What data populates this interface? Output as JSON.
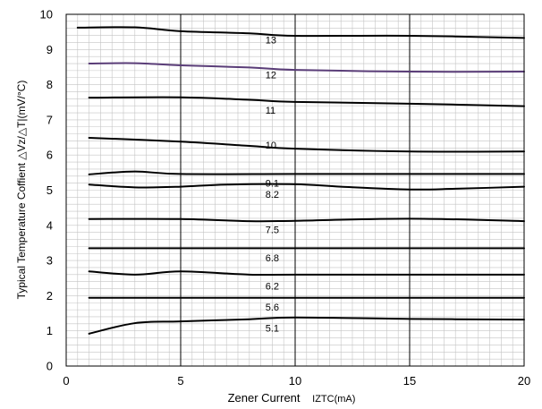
{
  "chart_data": {
    "type": "line",
    "title": "",
    "xlabel": "Zener Current",
    "xlabel_sub": "IZTC(mA)",
    "ylabel": "Typical Temperature Coffient  △Vz/△T|(mV/°C)",
    "xlim": [
      0,
      20
    ],
    "ylim": [
      0,
      10
    ],
    "x_ticks": [
      0,
      5,
      10,
      15,
      20
    ],
    "y_ticks": [
      0,
      1,
      2,
      3,
      4,
      5,
      6,
      7,
      8,
      9,
      10
    ],
    "x_minor_step": 0.5,
    "y_minor_step": 0.2,
    "grid": true,
    "legend": "none",
    "series": [
      {
        "name": "13",
        "label_x": 8.7,
        "label_y": 9.28,
        "color": "#000000",
        "points": [
          [
            0.5,
            9.62
          ],
          [
            3,
            9.63
          ],
          [
            5,
            9.52
          ],
          [
            8,
            9.46
          ],
          [
            10,
            9.39
          ],
          [
            15,
            9.39
          ],
          [
            20,
            9.33
          ]
        ]
      },
      {
        "name": "12",
        "label_x": 8.7,
        "label_y": 8.28,
        "color": "#5a3d78",
        "points": [
          [
            1,
            8.6
          ],
          [
            3,
            8.61
          ],
          [
            5,
            8.55
          ],
          [
            8,
            8.49
          ],
          [
            10,
            8.42
          ],
          [
            15,
            8.37
          ],
          [
            20,
            8.37
          ]
        ]
      },
      {
        "name": "11",
        "label_x": 8.7,
        "label_y": 7.28,
        "color": "#000000",
        "points": [
          [
            1,
            7.63
          ],
          [
            5,
            7.64
          ],
          [
            8,
            7.57
          ],
          [
            10,
            7.51
          ],
          [
            15,
            7.46
          ],
          [
            20,
            7.39
          ]
        ]
      },
      {
        "name": "10",
        "label_x": 8.7,
        "label_y": 6.28,
        "color": "#000000",
        "points": [
          [
            1,
            6.49
          ],
          [
            5,
            6.38
          ],
          [
            8,
            6.26
          ],
          [
            10,
            6.18
          ],
          [
            15,
            6.1
          ],
          [
            20,
            6.1
          ]
        ]
      },
      {
        "name": "9.1",
        "label_x": 8.7,
        "label_y": 5.2,
        "color": "#000000",
        "points": [
          [
            1,
            5.45
          ],
          [
            3,
            5.53
          ],
          [
            5,
            5.46
          ],
          [
            10,
            5.46
          ],
          [
            15,
            5.46
          ],
          [
            20,
            5.46
          ]
        ]
      },
      {
        "name": "8.2",
        "label_x": 8.7,
        "label_y": 4.88,
        "color": "#000000",
        "points": [
          [
            1,
            5.16
          ],
          [
            3,
            5.08
          ],
          [
            5,
            5.1
          ],
          [
            7,
            5.16
          ],
          [
            10,
            5.17
          ],
          [
            12,
            5.1
          ],
          [
            15,
            5.02
          ],
          [
            17,
            5.04
          ],
          [
            20,
            5.1
          ]
        ]
      },
      {
        "name": "7.5",
        "label_x": 8.7,
        "label_y": 3.88,
        "color": "#000000",
        "points": [
          [
            1,
            4.18
          ],
          [
            5,
            4.18
          ],
          [
            8,
            4.12
          ],
          [
            10,
            4.13
          ],
          [
            15,
            4.19
          ],
          [
            20,
            4.12
          ]
        ]
      },
      {
        "name": "6.8",
        "label_x": 8.7,
        "label_y": 3.08,
        "color": "#000000",
        "points": [
          [
            1,
            3.35
          ],
          [
            20,
            3.35
          ]
        ]
      },
      {
        "name": "6.2",
        "label_x": 8.7,
        "label_y": 2.28,
        "color": "#000000",
        "points": [
          [
            1,
            2.69
          ],
          [
            3,
            2.6
          ],
          [
            5,
            2.69
          ],
          [
            8,
            2.6
          ],
          [
            10,
            2.6
          ],
          [
            20,
            2.6
          ]
        ]
      },
      {
        "name": "5.6",
        "label_x": 8.7,
        "label_y": 1.68,
        "color": "#000000",
        "points": [
          [
            1,
            1.94
          ],
          [
            20,
            1.94
          ]
        ]
      },
      {
        "name": "5.1",
        "label_x": 8.7,
        "label_y": 1.08,
        "color": "#000000",
        "points": [
          [
            1,
            0.92
          ],
          [
            3,
            1.22
          ],
          [
            5,
            1.27
          ],
          [
            8,
            1.33
          ],
          [
            10,
            1.38
          ],
          [
            15,
            1.34
          ],
          [
            20,
            1.32
          ]
        ]
      }
    ]
  }
}
